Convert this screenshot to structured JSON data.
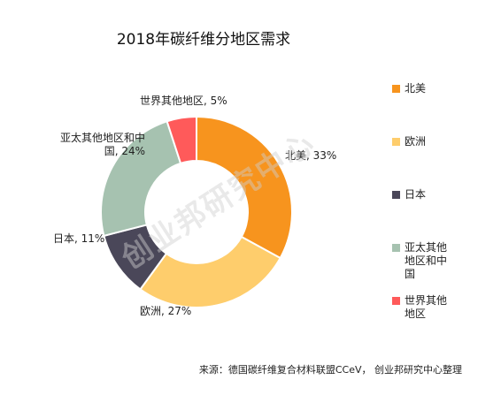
{
  "chart_data": {
    "type": "pie",
    "title": "2018年碳纤维分地区需求",
    "slices": [
      {
        "label": "北美",
        "value": 33,
        "value_label": "北美, 33%",
        "color": "#f7941e"
      },
      {
        "label": "欧洲",
        "value": 27,
        "value_label": "欧洲, 27%",
        "color": "#fecd6c"
      },
      {
        "label": "日本",
        "value": 11,
        "value_label": "日本, 11%",
        "color": "#4a4759"
      },
      {
        "label": "亚太其他地区和中国",
        "value": 24,
        "value_label": [
          "亚太其他地区和中",
          "国, 24%"
        ],
        "color": "#a6c2b0"
      },
      {
        "label": "世界其他地区",
        "value": 5,
        "value_label": "世界其他地区, 5%",
        "color": "#ff5a5a"
      }
    ],
    "legend_position": "right",
    "hole": true
  },
  "source": "来源：德国碳纤维复合材料联盟CCeV， 创业邦研究中心整理",
  "watermark": "创业邦研究中心"
}
